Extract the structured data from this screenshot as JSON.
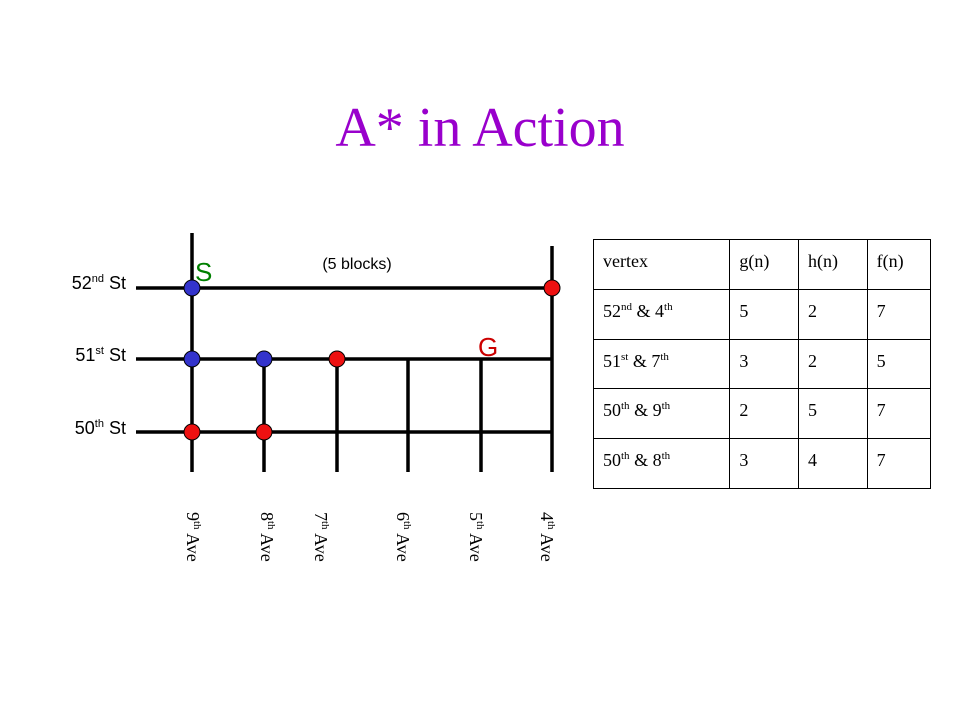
{
  "slide": {
    "title": "A* in Action",
    "title_color": "#9900CC",
    "blocks_label": "(5 blocks)",
    "start_marker": "S",
    "start_color": "#008000",
    "goal_marker": "G",
    "goal_color": "#CC0000"
  },
  "streets": [
    {
      "num": "52",
      "suffix": "nd",
      "name": " St"
    },
    {
      "num": "51",
      "suffix": "st",
      "name": " St"
    },
    {
      "num": "50",
      "suffix": "th",
      "name": " St"
    }
  ],
  "avenues": [
    {
      "num": "9",
      "suffix": "th",
      "name": " Ave"
    },
    {
      "num": "8",
      "suffix": "th",
      "name": " Ave"
    },
    {
      "num": "7",
      "suffix": "th",
      "name": " Ave"
    },
    {
      "num": "6",
      "suffix": "th",
      "name": " Ave"
    },
    {
      "num": "5",
      "suffix": "th",
      "name": " Ave"
    },
    {
      "num": "4",
      "suffix": "th",
      "name": " Ave"
    }
  ],
  "nodes": [
    {
      "street": "52nd",
      "avenue": "9th",
      "color": "blue"
    },
    {
      "street": "52nd",
      "avenue": "4th",
      "color": "red"
    },
    {
      "street": "51st",
      "avenue": "9th",
      "color": "blue"
    },
    {
      "street": "51st",
      "avenue": "8th",
      "color": "blue"
    },
    {
      "street": "51st",
      "avenue": "7th",
      "color": "red"
    },
    {
      "street": "50th",
      "avenue": "9th",
      "color": "red"
    },
    {
      "street": "50th",
      "avenue": "8th",
      "color": "red"
    }
  ],
  "colors": {
    "blue": "#3333CC",
    "red": "#EE1111"
  },
  "table": {
    "headers": [
      "vertex",
      "g(n)",
      "h(n)",
      "f(n)"
    ],
    "rows": [
      {
        "v_num": "52",
        "v_suffix": "nd",
        "v_mid": " & 4",
        "v_suffix2": "th",
        "g": "5",
        "h": "2",
        "f": "7"
      },
      {
        "v_num": "51",
        "v_suffix": "st",
        "v_mid": " & 7",
        "v_suffix2": "th",
        "g": "3",
        "h": "2",
        "f": "5"
      },
      {
        "v_num": "50",
        "v_suffix": "th",
        "v_mid": " & 9",
        "v_suffix2": "th",
        "g": "2",
        "h": "5",
        "f": "7"
      },
      {
        "v_num": "50",
        "v_suffix": "th",
        "v_mid": " & 8",
        "v_suffix2": "th",
        "g": "3",
        "h": "4",
        "f": "7"
      }
    ]
  }
}
